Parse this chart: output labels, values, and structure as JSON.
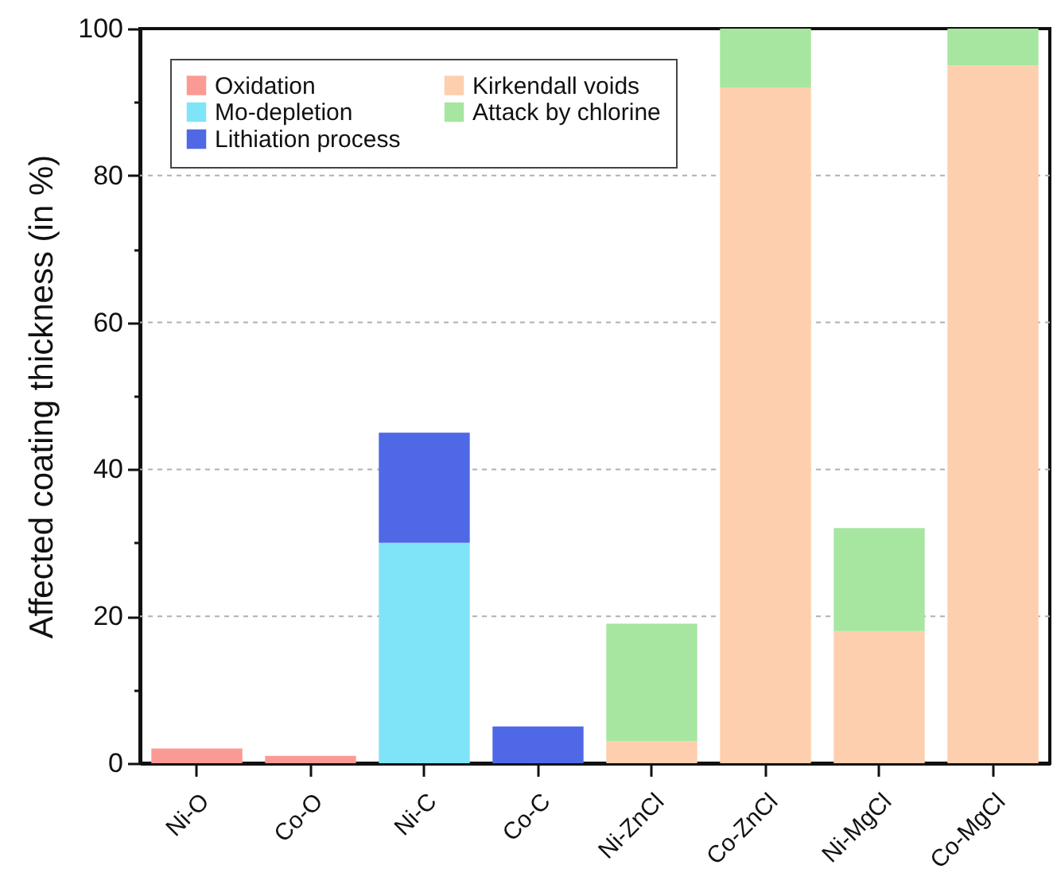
{
  "chart_data": {
    "type": "bar",
    "stacked": true,
    "ylabel": "Affected coating thickness (in %)",
    "categories": [
      "Ni-O",
      "Co-O",
      "Ni-C",
      "Co-C",
      "Ni-ZnCl",
      "Co-ZnCl",
      "Ni-MgCl",
      "Co-MgCl"
    ],
    "series": [
      {
        "name": "Oxidation",
        "color": "#fb9a94",
        "values": [
          2,
          1,
          null,
          null,
          null,
          null,
          null,
          null
        ]
      },
      {
        "name": "Mo-depletion",
        "color": "#7fe4f7",
        "values": [
          null,
          null,
          30,
          null,
          null,
          null,
          null,
          null
        ]
      },
      {
        "name": "Lithiation process",
        "color": "#4f69e6",
        "values": [
          null,
          null,
          15,
          5,
          null,
          null,
          null,
          null
        ]
      },
      {
        "name": "Kirkendall voids",
        "color": "#fdcfae",
        "values": [
          null,
          null,
          null,
          null,
          3,
          92,
          18,
          95
        ]
      },
      {
        "name": "Attack by chlorine",
        "color": "#a6e6a0",
        "values": [
          null,
          null,
          null,
          null,
          16,
          8,
          14,
          5
        ]
      }
    ],
    "ylim": [
      0,
      100
    ],
    "yticks": [
      0,
      {
        "value": 10,
        "label": null
      },
      20,
      {
        "value": 30,
        "label": null
      },
      40,
      {
        "value": 50,
        "label": null
      },
      60,
      {
        "value": 70,
        "label": null
      },
      80,
      {
        "value": 90,
        "label": null
      },
      100
    ],
    "grid": "y",
    "legend": "top left"
  }
}
